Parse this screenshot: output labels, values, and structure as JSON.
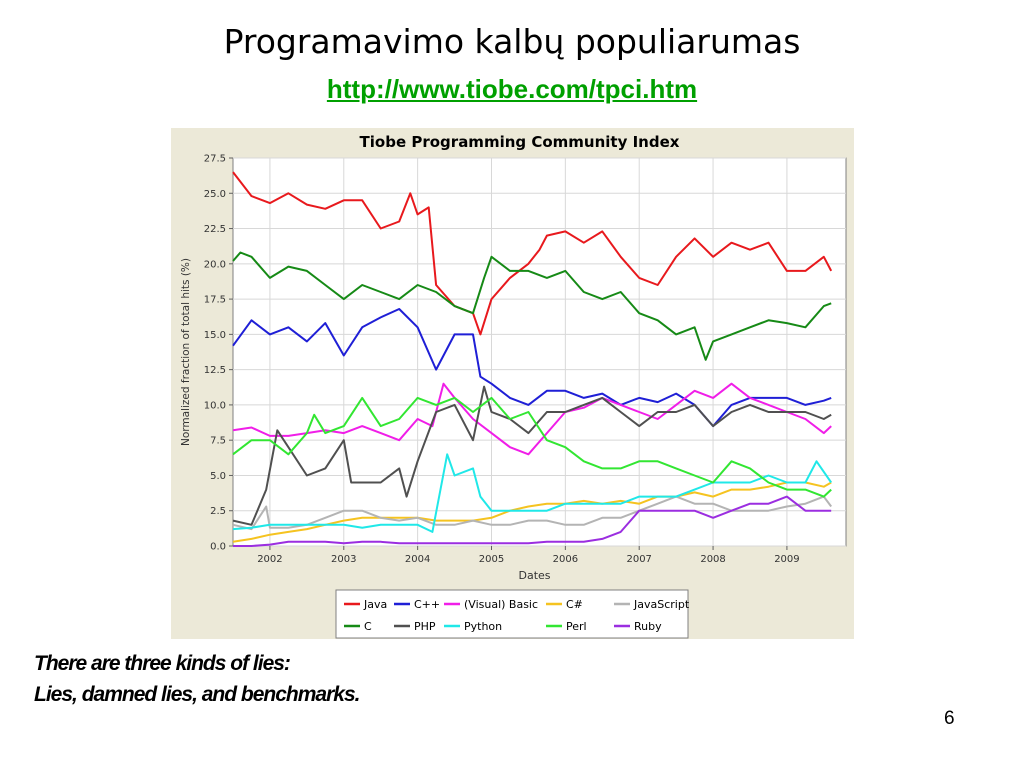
{
  "slide": {
    "title": "Programavimo kalbų populiarumas",
    "link": "http://www.tiobe.com/tpci.htm",
    "quote_line1": "There are three kinds of lies:",
    "quote_line2": "Lies, damned lies, and benchmarks.",
    "page_number": "6"
  },
  "chart_data": {
    "type": "line",
    "title": "Tiobe Programming Community Index",
    "xlabel": "Dates",
    "ylabel": "Normalized fraction of total hits (%)",
    "xlim": [
      2001.5,
      2009.8
    ],
    "ylim": [
      0,
      27.5
    ],
    "yticks": [
      "0.0",
      "2.5",
      "5.0",
      "7.5",
      "10.0",
      "12.5",
      "15.0",
      "17.5",
      "20.0",
      "22.5",
      "25.0",
      "27.5"
    ],
    "xticks": [
      "2002",
      "2003",
      "2004",
      "2005",
      "2006",
      "2007",
      "2008",
      "2009"
    ],
    "grid": true,
    "legend_position": "bottom",
    "series": [
      {
        "name": "Java",
        "color": "#e8191d",
        "x": [
          2001.5,
          2001.75,
          2002,
          2002.25,
          2002.5,
          2002.75,
          2003,
          2003.25,
          2003.5,
          2003.75,
          2003.9,
          2004,
          2004.15,
          2004.25,
          2004.5,
          2004.75,
          2004.85,
          2005,
          2005.25,
          2005.5,
          2005.65,
          2005.75,
          2006,
          2006.25,
          2006.5,
          2006.75,
          2007,
          2007.25,
          2007.5,
          2007.75,
          2008,
          2008.25,
          2008.5,
          2008.75,
          2009,
          2009.25,
          2009.5,
          2009.6
        ],
        "values": [
          26.5,
          24.8,
          24.3,
          25.0,
          24.2,
          23.9,
          24.5,
          24.5,
          22.5,
          23.0,
          25.0,
          23.5,
          24.0,
          18.5,
          17.0,
          16.5,
          15.0,
          17.5,
          19.0,
          20.0,
          21.0,
          22.0,
          22.3,
          21.5,
          22.3,
          20.5,
          19.0,
          18.5,
          20.5,
          21.8,
          20.5,
          21.5,
          21.0,
          21.5,
          19.5,
          19.5,
          20.5,
          19.5
        ]
      },
      {
        "name": "C++",
        "color": "#1f1fd6",
        "x": [
          2001.5,
          2001.75,
          2002,
          2002.25,
          2002.5,
          2002.75,
          2003,
          2003.25,
          2003.5,
          2003.75,
          2004,
          2004.25,
          2004.5,
          2004.75,
          2004.85,
          2005,
          2005.25,
          2005.5,
          2005.75,
          2006,
          2006.25,
          2006.5,
          2006.75,
          2007,
          2007.25,
          2007.5,
          2007.75,
          2008,
          2008.25,
          2008.5,
          2008.75,
          2009,
          2009.25,
          2009.5,
          2009.6
        ],
        "values": [
          14.2,
          16.0,
          15.0,
          15.5,
          14.5,
          15.8,
          13.5,
          15.5,
          16.2,
          16.8,
          15.5,
          12.5,
          15.0,
          15.0,
          12.0,
          11.5,
          10.5,
          10.0,
          11.0,
          11.0,
          10.5,
          10.8,
          10.0,
          10.5,
          10.2,
          10.8,
          10.0,
          8.5,
          10.0,
          10.5,
          10.5,
          10.5,
          10.0,
          10.3,
          10.5
        ]
      },
      {
        "name": "(Visual) Basic",
        "color": "#f01ee8",
        "x": [
          2001.5,
          2001.75,
          2002,
          2002.25,
          2002.5,
          2002.75,
          2003,
          2003.25,
          2003.5,
          2003.75,
          2004,
          2004.2,
          2004.35,
          2004.5,
          2004.75,
          2005,
          2005.25,
          2005.5,
          2005.75,
          2006,
          2006.25,
          2006.5,
          2006.75,
          2007,
          2007.25,
          2007.5,
          2007.75,
          2008,
          2008.25,
          2008.5,
          2008.75,
          2009,
          2009.25,
          2009.5,
          2009.6
        ],
        "values": [
          8.2,
          8.4,
          7.8,
          7.8,
          8.0,
          8.2,
          8.0,
          8.5,
          8.0,
          7.5,
          9.0,
          8.5,
          11.5,
          10.5,
          9.0,
          8.0,
          7.0,
          6.5,
          8.0,
          9.5,
          9.8,
          10.5,
          10.0,
          9.5,
          9.0,
          10.0,
          11.0,
          10.5,
          11.5,
          10.5,
          10.0,
          9.5,
          9.0,
          8.0,
          8.5
        ]
      },
      {
        "name": "C#",
        "color": "#f5c320",
        "x": [
          2001.5,
          2001.75,
          2002,
          2002.25,
          2002.5,
          2002.75,
          2003,
          2003.25,
          2003.5,
          2003.75,
          2004,
          2004.25,
          2004.5,
          2004.75,
          2005,
          2005.25,
          2005.5,
          2005.75,
          2006,
          2006.25,
          2006.5,
          2006.75,
          2007,
          2007.25,
          2007.5,
          2007.75,
          2008,
          2008.25,
          2008.5,
          2008.75,
          2009,
          2009.25,
          2009.5,
          2009.6
        ],
        "values": [
          0.3,
          0.5,
          0.8,
          1.0,
          1.2,
          1.5,
          1.8,
          2.0,
          2.0,
          2.0,
          2.0,
          1.8,
          1.8,
          1.8,
          2.0,
          2.5,
          2.8,
          3.0,
          3.0,
          3.2,
          3.0,
          3.2,
          3.0,
          3.5,
          3.5,
          3.8,
          3.5,
          4.0,
          4.0,
          4.2,
          4.5,
          4.5,
          4.2,
          4.5
        ]
      },
      {
        "name": "JavaScript",
        "color": "#b4b4b4",
        "x": [
          2001.5,
          2001.75,
          2001.95,
          2002,
          2002.25,
          2002.5,
          2002.75,
          2003,
          2003.25,
          2003.5,
          2003.75,
          2004,
          2004.25,
          2004.5,
          2004.75,
          2005,
          2005.25,
          2005.5,
          2005.75,
          2006,
          2006.25,
          2006.5,
          2006.75,
          2007,
          2007.25,
          2007.5,
          2007.75,
          2008,
          2008.25,
          2008.5,
          2008.75,
          2009,
          2009.25,
          2009.5,
          2009.6
        ],
        "values": [
          1.5,
          1.2,
          2.8,
          1.3,
          1.3,
          1.5,
          2.0,
          2.5,
          2.5,
          2.0,
          1.8,
          2.0,
          1.5,
          1.5,
          1.8,
          1.5,
          1.5,
          1.8,
          1.8,
          1.5,
          1.5,
          2.0,
          2.0,
          2.5,
          3.0,
          3.5,
          3.0,
          3.0,
          2.5,
          2.5,
          2.5,
          2.8,
          3.0,
          3.5,
          2.8
        ]
      },
      {
        "name": "C",
        "color": "#168a16",
        "x": [
          2001.5,
          2001.6,
          2001.75,
          2002,
          2002.25,
          2002.5,
          2002.75,
          2003,
          2003.25,
          2003.5,
          2003.75,
          2004,
          2004.25,
          2004.5,
          2004.75,
          2004.9,
          2005,
          2005.25,
          2005.5,
          2005.75,
          2006,
          2006.25,
          2006.5,
          2006.75,
          2007,
          2007.25,
          2007.5,
          2007.75,
          2007.9,
          2008,
          2008.25,
          2008.5,
          2008.75,
          2009,
          2009.25,
          2009.5,
          2009.6
        ],
        "values": [
          20.2,
          20.8,
          20.5,
          19.0,
          19.8,
          19.5,
          18.5,
          17.5,
          18.5,
          18.0,
          17.5,
          18.5,
          18.0,
          17.0,
          16.5,
          19.0,
          20.5,
          19.5,
          19.5,
          19.0,
          19.5,
          18.0,
          17.5,
          18.0,
          16.5,
          16.0,
          15.0,
          15.5,
          13.2,
          14.5,
          15.0,
          15.5,
          16.0,
          15.8,
          15.5,
          17.0,
          17.2
        ]
      },
      {
        "name": "PHP",
        "color": "#505050",
        "x": [
          2001.5,
          2001.75,
          2001.95,
          2002.1,
          2002.25,
          2002.5,
          2002.75,
          2003,
          2003.1,
          2003.25,
          2003.5,
          2003.75,
          2003.85,
          2004,
          2004.25,
          2004.5,
          2004.75,
          2004.9,
          2005,
          2005.25,
          2005.5,
          2005.75,
          2006,
          2006.25,
          2006.5,
          2006.75,
          2007,
          2007.25,
          2007.5,
          2007.75,
          2008,
          2008.25,
          2008.5,
          2008.75,
          2009,
          2009.25,
          2009.5,
          2009.6
        ],
        "values": [
          1.8,
          1.5,
          4.0,
          8.2,
          7.0,
          5.0,
          5.5,
          7.5,
          4.5,
          4.5,
          4.5,
          5.5,
          3.5,
          6.0,
          9.5,
          10.0,
          7.5,
          11.3,
          9.5,
          9.0,
          8.0,
          9.5,
          9.5,
          10.0,
          10.5,
          9.5,
          8.5,
          9.5,
          9.5,
          10.0,
          8.5,
          9.5,
          10.0,
          9.5,
          9.5,
          9.5,
          9.0,
          9.3
        ]
      },
      {
        "name": "Python",
        "color": "#20e8e8",
        "x": [
          2001.5,
          2001.75,
          2002,
          2002.25,
          2002.5,
          2002.75,
          2003,
          2003.25,
          2003.5,
          2003.75,
          2004,
          2004.2,
          2004.4,
          2004.5,
          2004.75,
          2004.85,
          2005,
          2005.25,
          2005.5,
          2005.75,
          2006,
          2006.25,
          2006.5,
          2006.75,
          2007,
          2007.25,
          2007.5,
          2007.75,
          2008,
          2008.25,
          2008.5,
          2008.75,
          2009,
          2009.25,
          2009.4,
          2009.6
        ],
        "values": [
          1.2,
          1.3,
          1.5,
          1.5,
          1.5,
          1.5,
          1.5,
          1.3,
          1.5,
          1.5,
          1.5,
          1.0,
          6.5,
          5.0,
          5.5,
          3.5,
          2.5,
          2.5,
          2.5,
          2.5,
          3.0,
          3.0,
          3.0,
          3.0,
          3.5,
          3.5,
          3.5,
          4.0,
          4.5,
          4.5,
          4.5,
          5.0,
          4.5,
          4.5,
          6.0,
          4.5
        ]
      },
      {
        "name": "Perl",
        "color": "#32e632",
        "x": [
          2001.5,
          2001.75,
          2002,
          2002.25,
          2002.5,
          2002.6,
          2002.75,
          2003,
          2003.25,
          2003.5,
          2003.75,
          2004,
          2004.25,
          2004.5,
          2004.75,
          2005,
          2005.25,
          2005.5,
          2005.75,
          2006,
          2006.25,
          2006.5,
          2006.75,
          2007,
          2007.25,
          2007.5,
          2007.75,
          2008,
          2008.25,
          2008.5,
          2008.75,
          2009,
          2009.25,
          2009.5,
          2009.6
        ],
        "values": [
          6.5,
          7.5,
          7.5,
          6.5,
          8.0,
          9.3,
          8.0,
          8.5,
          10.5,
          8.5,
          9.0,
          10.5,
          10.0,
          10.5,
          9.5,
          10.5,
          9.0,
          9.5,
          7.5,
          7.0,
          6.0,
          5.5,
          5.5,
          6.0,
          6.0,
          5.5,
          5.0,
          4.5,
          6.0,
          5.5,
          4.5,
          4.0,
          4.0,
          3.5,
          4.0
        ]
      },
      {
        "name": "Ruby",
        "color": "#9b2ee0",
        "x": [
          2001.5,
          2001.75,
          2002,
          2002.25,
          2002.5,
          2002.75,
          2003,
          2003.25,
          2003.5,
          2003.75,
          2004,
          2004.25,
          2004.5,
          2004.75,
          2005,
          2005.25,
          2005.5,
          2005.75,
          2006,
          2006.25,
          2006.5,
          2006.75,
          2007,
          2007.25,
          2007.5,
          2007.75,
          2008,
          2008.25,
          2008.5,
          2008.75,
          2009,
          2009.25,
          2009.5,
          2009.6
        ],
        "values": [
          0.0,
          0.0,
          0.1,
          0.3,
          0.3,
          0.3,
          0.2,
          0.3,
          0.3,
          0.2,
          0.2,
          0.2,
          0.2,
          0.2,
          0.2,
          0.2,
          0.2,
          0.3,
          0.3,
          0.3,
          0.5,
          1.0,
          2.5,
          2.5,
          2.5,
          2.5,
          2.0,
          2.5,
          3.0,
          3.0,
          3.5,
          2.5,
          2.5,
          2.5
        ]
      }
    ]
  }
}
